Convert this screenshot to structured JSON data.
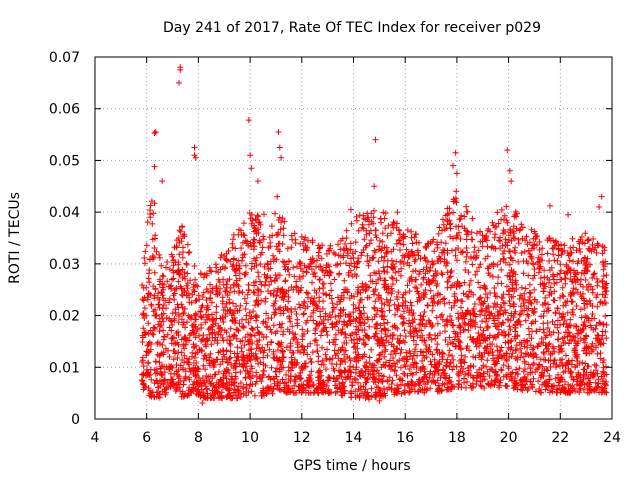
{
  "chart_data": {
    "type": "scatter",
    "title": "Day 241 of 2017, Rate Of TEC Index for receiver p029",
    "xlabel": "GPS time / hours",
    "ylabel": "ROTI / TECUs",
    "xlim": [
      4,
      24
    ],
    "ylim": [
      0,
      0.07
    ],
    "xticks": [
      "4",
      "6",
      "8",
      "10",
      "12",
      "14",
      "16",
      "18",
      "20",
      "22",
      "24"
    ],
    "yticks": [
      "0",
      "0.01",
      "0.02",
      "0.03",
      "0.04",
      "0.05",
      "0.06",
      "0.07"
    ],
    "grid": true,
    "marker": "plus",
    "color": "#ff0000",
    "data_x_range": [
      5.8,
      23.8
    ],
    "envelope": [
      {
        "x": 5.8,
        "low": 0.006,
        "high": 0.027
      },
      {
        "x": 6.2,
        "low": 0.004,
        "high": 0.046
      },
      {
        "x": 6.6,
        "low": 0.004,
        "high": 0.03
      },
      {
        "x": 7.0,
        "low": 0.006,
        "high": 0.034
      },
      {
        "x": 7.4,
        "low": 0.004,
        "high": 0.038
      },
      {
        "x": 7.8,
        "low": 0.005,
        "high": 0.03
      },
      {
        "x": 8.2,
        "low": 0.004,
        "high": 0.028
      },
      {
        "x": 9.0,
        "low": 0.004,
        "high": 0.033
      },
      {
        "x": 10.0,
        "low": 0.004,
        "high": 0.04
      },
      {
        "x": 11.0,
        "low": 0.005,
        "high": 0.04
      },
      {
        "x": 12.0,
        "low": 0.005,
        "high": 0.036
      },
      {
        "x": 13.0,
        "low": 0.005,
        "high": 0.033
      },
      {
        "x": 14.0,
        "low": 0.004,
        "high": 0.039
      },
      {
        "x": 15.0,
        "low": 0.004,
        "high": 0.041
      },
      {
        "x": 16.0,
        "low": 0.005,
        "high": 0.037
      },
      {
        "x": 17.0,
        "low": 0.005,
        "high": 0.034
      },
      {
        "x": 18.0,
        "low": 0.006,
        "high": 0.045
      },
      {
        "x": 19.0,
        "low": 0.006,
        "high": 0.036
      },
      {
        "x": 20.0,
        "low": 0.006,
        "high": 0.043
      },
      {
        "x": 21.0,
        "low": 0.005,
        "high": 0.037
      },
      {
        "x": 22.0,
        "low": 0.005,
        "high": 0.034
      },
      {
        "x": 23.0,
        "low": 0.005,
        "high": 0.036
      },
      {
        "x": 23.8,
        "low": 0.005,
        "high": 0.033
      }
    ],
    "outliers": [
      [
        7.3,
        0.068
      ],
      [
        7.3,
        0.0675
      ],
      [
        7.25,
        0.065
      ],
      [
        6.35,
        0.0555
      ],
      [
        6.3,
        0.0553
      ],
      [
        7.85,
        0.0525
      ],
      [
        7.85,
        0.051
      ],
      [
        7.9,
        0.0505
      ],
      [
        6.3,
        0.0488
      ],
      [
        6.6,
        0.046
      ],
      [
        9.95,
        0.0578
      ],
      [
        10.0,
        0.051
      ],
      [
        10.05,
        0.0485
      ],
      [
        10.3,
        0.046
      ],
      [
        11.1,
        0.0555
      ],
      [
        11.15,
        0.0525
      ],
      [
        11.2,
        0.0505
      ],
      [
        11.05,
        0.043
      ],
      [
        14.85,
        0.054
      ],
      [
        14.8,
        0.045
      ],
      [
        17.95,
        0.0515
      ],
      [
        17.85,
        0.049
      ],
      [
        18.0,
        0.0475
      ],
      [
        19.95,
        0.052
      ],
      [
        20.05,
        0.048
      ],
      [
        20.1,
        0.046
      ],
      [
        23.6,
        0.043
      ],
      [
        23.5,
        0.041
      ],
      [
        13.9,
        0.0405
      ],
      [
        15.7,
        0.04
      ],
      [
        21.6,
        0.0412
      ],
      [
        22.3,
        0.0395
      ],
      [
        8.15,
        0.0031
      ],
      [
        15.0,
        0.0035
      ],
      [
        14.6,
        0.0038
      ]
    ]
  }
}
